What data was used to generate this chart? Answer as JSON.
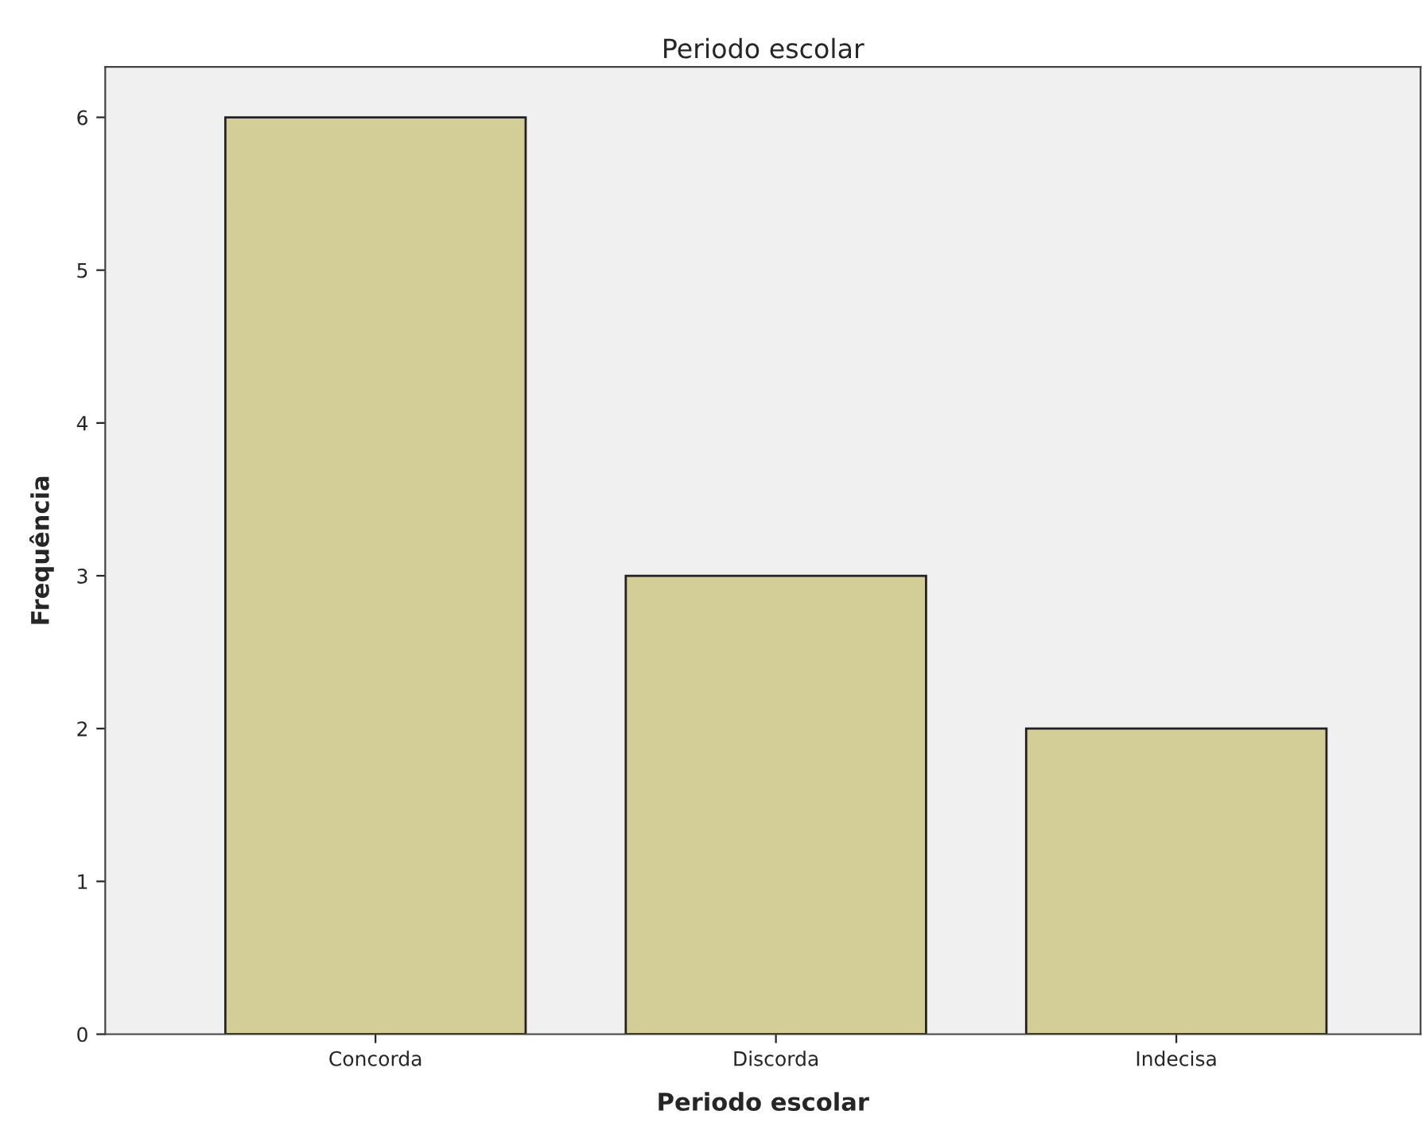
{
  "chart_data": {
    "type": "bar",
    "title": "Periodo escolar",
    "xlabel": "Periodo escolar",
    "ylabel": "Frequência",
    "categories": [
      "Concorda",
      "Discorda",
      "Indecisa"
    ],
    "values": [
      6,
      3,
      2
    ],
    "color": "#d3ce97",
    "ylim": [
      0,
      6.33
    ],
    "yticks": [
      0,
      1,
      2,
      3,
      4,
      5,
      6
    ],
    "grid": false
  }
}
